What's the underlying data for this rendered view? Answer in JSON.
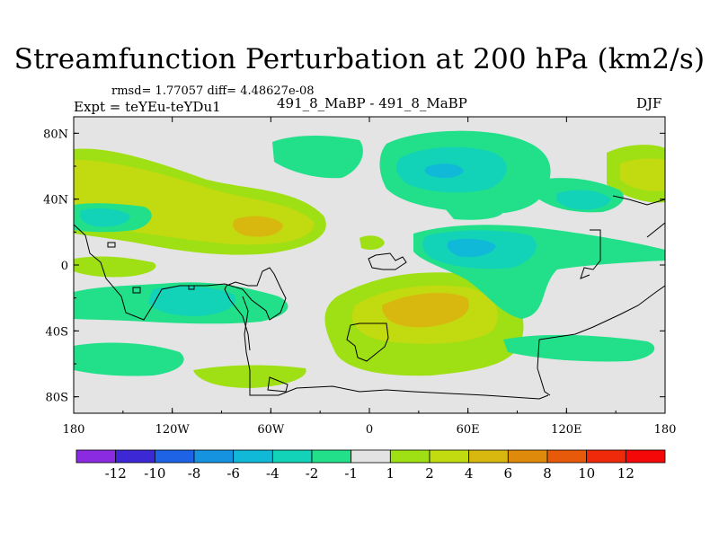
{
  "title": "Streamfunction Perturbation at 200 hPa (km2/s)",
  "rmsd_line": "rmsd= 1.77057 diff= 4.48627e-08",
  "expt_line": "Expt = teYEu-teYDu1",
  "case_line": "491_8_MaBP - 491_8_MaBP",
  "season": "DJF",
  "chart_data": {
    "type": "filled-contour-map",
    "variable": "streamfunction perturbation",
    "level_hPa": 200,
    "units": "km2/s",
    "xlim": [
      -180,
      180
    ],
    "ylim": [
      -90,
      90
    ],
    "x_ticks": [
      {
        "value": -180,
        "label": "180"
      },
      {
        "value": -120,
        "label": "120W"
      },
      {
        "value": -60,
        "label": "60W"
      },
      {
        "value": 0,
        "label": "0"
      },
      {
        "value": 60,
        "label": "60E"
      },
      {
        "value": 120,
        "label": "120E"
      },
      {
        "value": 180,
        "label": "180"
      }
    ],
    "y_ticks": [
      {
        "value": 80,
        "label": "80N"
      },
      {
        "value": 40,
        "label": "40N"
      },
      {
        "value": 0,
        "label": "0"
      },
      {
        "value": -40,
        "label": "40S"
      },
      {
        "value": -80,
        "label": "80S"
      }
    ],
    "contour_levels": [
      -12,
      -10,
      -8,
      -6,
      -4,
      -2,
      -1,
      1,
      2,
      4,
      6,
      8,
      10,
      12
    ],
    "colorbar_labels": [
      "-12",
      "-10",
      "-8",
      "-6",
      "-4",
      "-2",
      "-1",
      "1",
      "2",
      "4",
      "6",
      "8",
      "10",
      "12"
    ],
    "colorbar_colors": [
      "#8a2be2",
      "#3d28d6",
      "#1e63e6",
      "#1592e0",
      "#10b9d8",
      "#12d2b8",
      "#22e08a",
      "#e3e3e3",
      "#9fe015",
      "#c2da10",
      "#d8b80e",
      "#e08a0c",
      "#e65a0a",
      "#ee2a0a",
      "#f50808"
    ],
    "features": [
      {
        "level": -2,
        "lon": 48,
        "lat": 60,
        "rx": 28,
        "ry": 12
      },
      {
        "level": -2,
        "lon": 60,
        "lat": 12,
        "rx": 32,
        "ry": 10
      },
      {
        "level": -2,
        "lon": -95,
        "lat": -18,
        "rx": 28,
        "ry": 10
      },
      {
        "level": -2,
        "lon": -160,
        "lat": 30,
        "rx": 18,
        "ry": 8
      },
      {
        "level": -4,
        "lon": 48,
        "lat": 62,
        "rx": 12,
        "ry": 6
      },
      {
        "level": -4,
        "lon": 65,
        "lat": 10,
        "rx": 12,
        "ry": 6
      },
      {
        "level": 2,
        "lon": -100,
        "lat": 35,
        "rx": 40,
        "ry": 18
      },
      {
        "level": 2,
        "lon": 45,
        "lat": -25,
        "rx": 55,
        "ry": 22
      },
      {
        "level": 2,
        "lon": 165,
        "lat": 55,
        "rx": 18,
        "ry": 12
      },
      {
        "level": 4,
        "lon": -70,
        "lat": 25,
        "rx": 18,
        "ry": 8
      },
      {
        "level": 4,
        "lon": 40,
        "lat": -25,
        "rx": 30,
        "ry": 12
      }
    ]
  }
}
